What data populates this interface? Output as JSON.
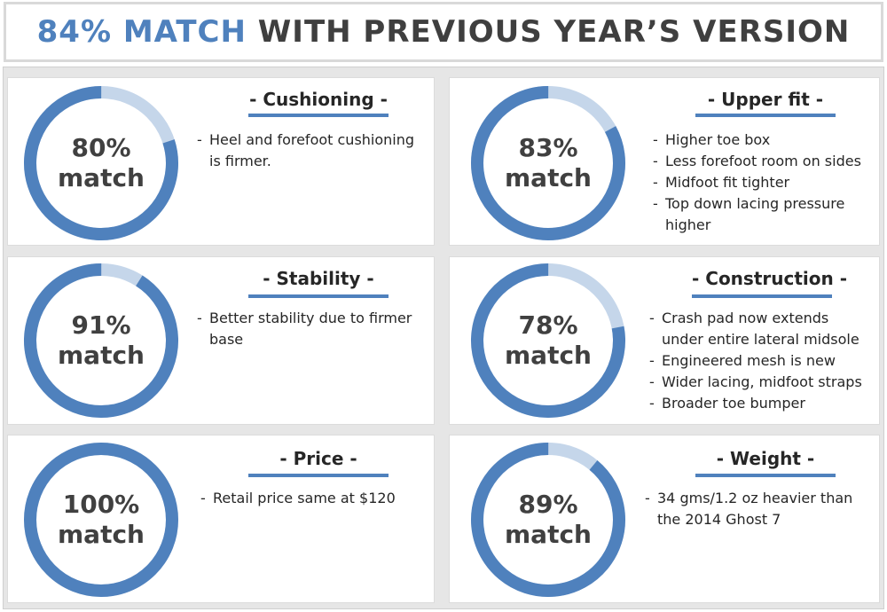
{
  "header": {
    "title_accent": "84% MATCH",
    "title_rest": " WITH PREVIOUS YEAR’S VERSION",
    "accent_color": "#4f81bd",
    "text_color": "#3f3f3f"
  },
  "colors": {
    "ring_primary": "#4f81bd",
    "ring_remainder": "#c5d6ea",
    "rule": "#4f81bd"
  },
  "cards": [
    {
      "title": "- Cushioning -",
      "match_value": 80,
      "match_percent": "80%",
      "match_word": "match",
      "bullets": [
        "Heel and forefoot cushioning is firmer."
      ]
    },
    {
      "title": "- Upper fit -",
      "match_value": 83,
      "match_percent": "83%",
      "match_word": "match",
      "bullets": [
        "Higher toe box",
        "Less forefoot room on sides",
        "Midfoot fit tighter",
        "Top down lacing pressure higher"
      ]
    },
    {
      "title": "- Stability -",
      "match_value": 91,
      "match_percent": "91%",
      "match_word": "match",
      "bullets": [
        "Better stability due to firmer base"
      ]
    },
    {
      "title": "- Construction -",
      "match_value": 78,
      "match_percent": "78%",
      "match_word": "match",
      "bullets": [
        "Crash pad now extends under entire lateral midsole",
        "Engineered mesh is new",
        "Wider lacing, midfoot straps",
        "Broader toe bumper"
      ]
    },
    {
      "title": "- Price -",
      "match_value": 100,
      "match_percent": "100%",
      "match_word": "match",
      "bullets": [
        "Retail price same at $120"
      ]
    },
    {
      "title": "- Weight -",
      "match_value": 89,
      "match_percent": "89%",
      "match_word": "match",
      "bullets": [
        "34 gms/1.2 oz heavier than the 2014 Ghost 7"
      ]
    }
  ]
}
